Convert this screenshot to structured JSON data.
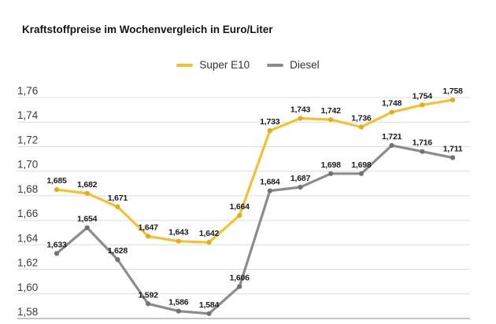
{
  "title": "Kraftstoffpreise im Wochenvergleich in Euro/Liter",
  "legend": {
    "position": "top-center",
    "items": [
      {
        "label": "Super E10",
        "color": "#f2c233"
      },
      {
        "label": "Diesel",
        "color": "#8c8c8c"
      }
    ]
  },
  "chart_data": {
    "type": "line",
    "title": "Kraftstoffpreise im Wochenvergleich in Euro/Liter",
    "xlabel": "",
    "ylabel": "Euro/Liter",
    "x_tick_labels_visible": false,
    "ylim": [
      1.58,
      1.76
    ],
    "ytick_step": 0.02,
    "y_tick_labels": [
      "1,76",
      "1,74",
      "1,72",
      "1,70",
      "1,68",
      "1,66",
      "1,64",
      "1,62",
      "1,60",
      "1,58"
    ],
    "grid": true,
    "legend_position": "top-center",
    "decimal_separator": ",",
    "series": [
      {
        "name": "Super E10",
        "color": "#f2c233",
        "marker_color": "#e3ab1e",
        "values": [
          1.685,
          1.682,
          1.671,
          1.647,
          1.643,
          1.642,
          1.664,
          1.733,
          1.743,
          1.742,
          1.736,
          1.748,
          1.754,
          1.758
        ],
        "point_labels": [
          "1,685",
          "1,682",
          "1,671",
          "1,647",
          "1,643",
          "1,642",
          "1,664",
          "1,733",
          "1,743",
          "1,742",
          "1,736",
          "1,748",
          "1,754",
          "1,758"
        ]
      },
      {
        "name": "Diesel",
        "color": "#8c8c8c",
        "marker_color": "#737373",
        "values": [
          1.633,
          1.654,
          1.628,
          1.592,
          1.586,
          1.584,
          1.606,
          1.684,
          1.687,
          1.698,
          1.698,
          1.721,
          1.716,
          1.711
        ],
        "point_labels": [
          "1,633",
          "1,654",
          "1,628",
          "1,592",
          "1,586",
          "1,584",
          "1,606",
          "1,684",
          "1,687",
          "1,698",
          "1,698",
          "1,721",
          "1,716",
          "1,711"
        ]
      }
    ],
    "colors": {
      "grid_line": "#dcdcdc",
      "bottom_axis": "#c6c6c6",
      "tick_label": "#3c3c3c",
      "point_label": "#1a1a1a",
      "title": "#141414"
    }
  }
}
